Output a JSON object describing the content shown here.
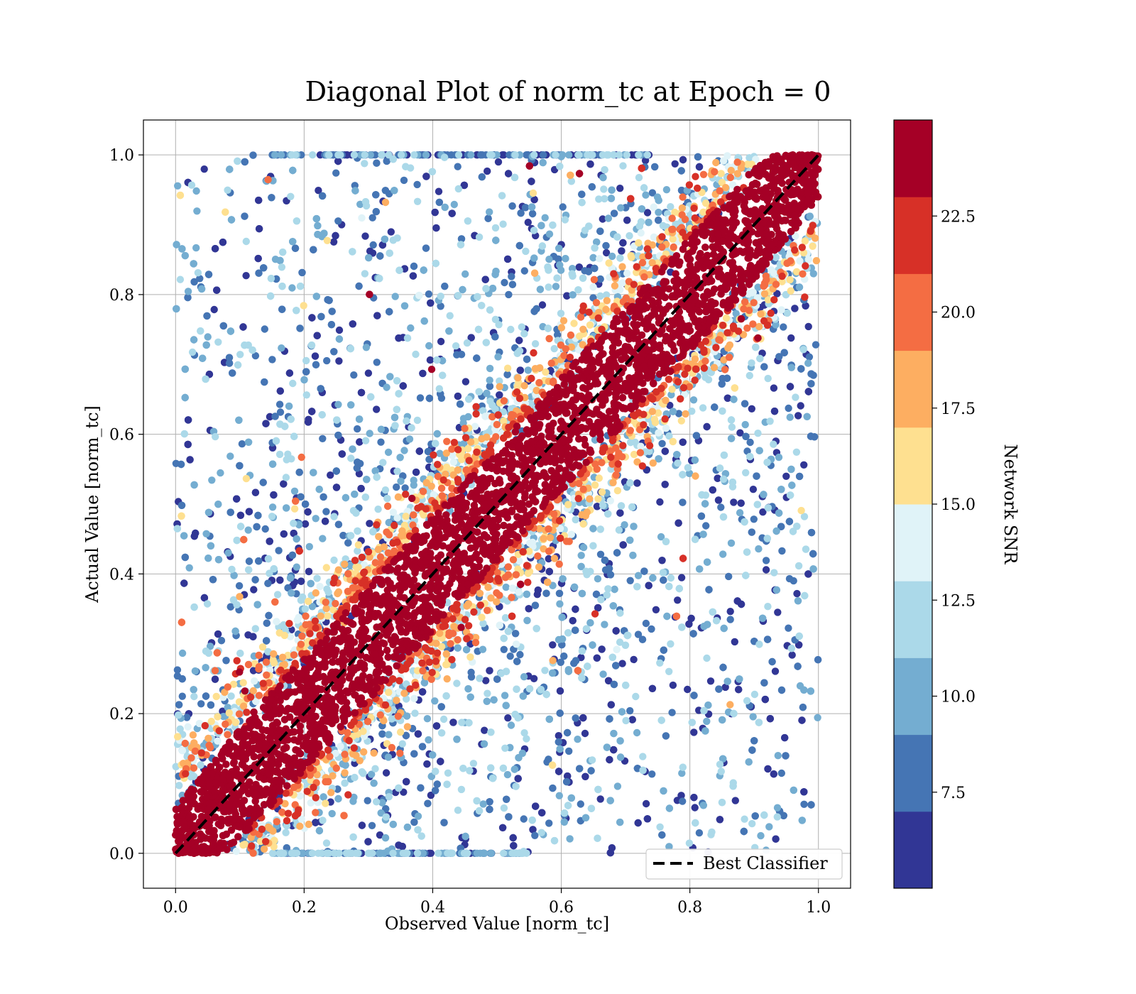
{
  "chart_data": {
    "type": "scatter",
    "title": "Diagonal Plot of norm_tc at Epoch = 0",
    "xlabel": "Observed Value [norm_tc]",
    "ylabel": "Actual Value [norm_tc]",
    "xlim": [
      -0.05,
      1.05
    ],
    "ylim": [
      -0.05,
      1.05
    ],
    "xticks": [
      "0.0",
      "0.2",
      "0.4",
      "0.6",
      "0.8",
      "1.0"
    ],
    "yticks": [
      "0.0",
      "0.2",
      "0.4",
      "0.6",
      "0.8",
      "1.0"
    ],
    "grid": true,
    "legend": {
      "placement": "lower-right",
      "entries": [
        {
          "label": "Best Classifier",
          "style": "dashed",
          "color": "#000000"
        }
      ]
    },
    "reference_line": {
      "x": [
        0.0,
        1.0
      ],
      "y": [
        0.0,
        1.0
      ]
    },
    "colorbar": {
      "label": "Network SNR",
      "range": [
        5.0,
        25.0
      ],
      "ticks": [
        "7.5",
        "10.0",
        "12.5",
        "15.0",
        "17.5",
        "20.0",
        "22.5"
      ],
      "colors": [
        "#313695",
        "#4575b4",
        "#74add1",
        "#abd9e9",
        "#e0f3f8",
        "#fee090",
        "#fdae61",
        "#f46d43",
        "#d73027",
        "#a50026"
      ]
    },
    "point_density": {
      "description_of_distribution": "high-SNR points cluster tightly along y = x; low-SNR points scatter widely",
      "high_snr_band_halfwidth": 0.09,
      "mid_snr_band_halfwidth": 0.13
    }
  }
}
